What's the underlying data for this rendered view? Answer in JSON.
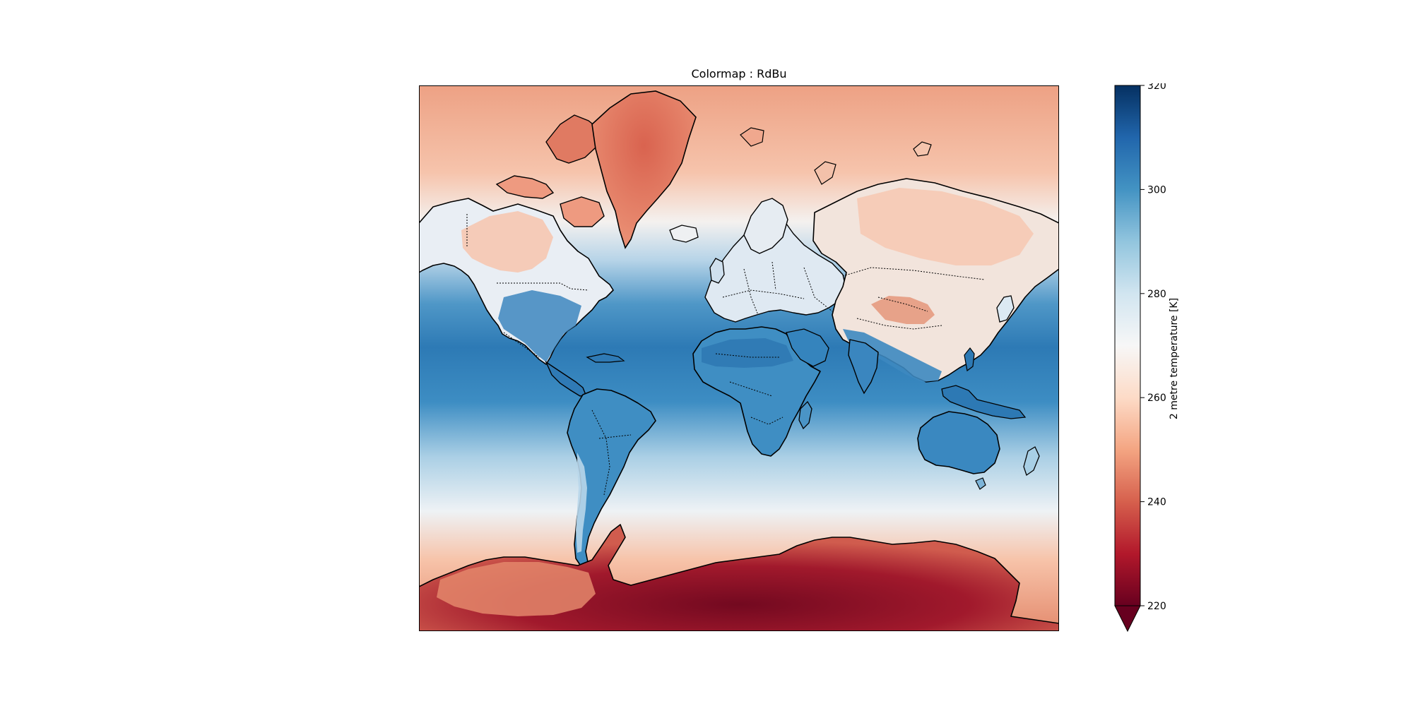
{
  "title": "Colormap : RdBu",
  "colormap": {
    "name": "RdBu",
    "stops": [
      "#67001f",
      "#b2182b",
      "#d6604d",
      "#f4a582",
      "#fddbc7",
      "#f7f7f7",
      "#d1e5f0",
      "#92c5de",
      "#4393c3",
      "#2166ac",
      "#053061"
    ]
  },
  "colorbar": {
    "label": "2 metre temperature [K]",
    "min": 220,
    "max": 320,
    "ticks": [
      220,
      240,
      260,
      280,
      300,
      320
    ],
    "extend": "min"
  },
  "map": {
    "projection": "Mercator",
    "features": [
      "coastlines",
      "country borders (dotted)"
    ]
  }
}
